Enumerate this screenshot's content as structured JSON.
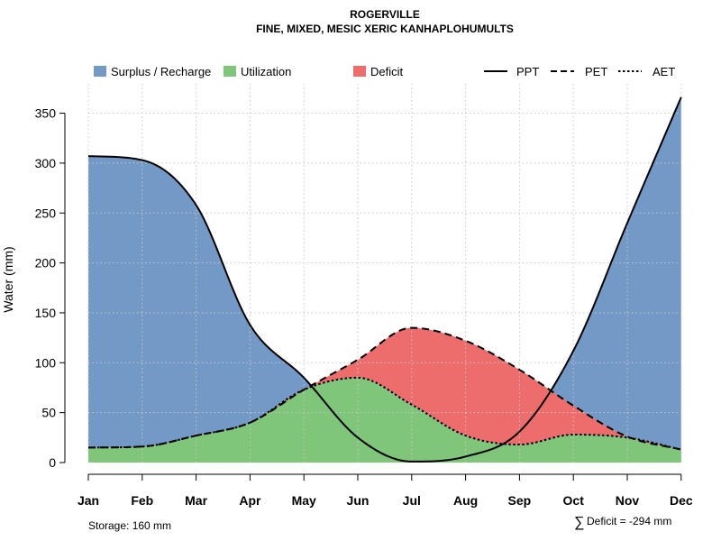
{
  "chart_data": {
    "type": "area",
    "title": "ROGERVILLE",
    "subtitle": "FINE, MIXED, MESIC XERIC KANHAPLOHUMULTS",
    "xlabel": "",
    "ylabel": "Water (mm)",
    "categories": [
      "Jan",
      "Feb",
      "Mar",
      "Apr",
      "May",
      "Jun",
      "Jul",
      "Aug",
      "Sep",
      "Oct",
      "Nov",
      "Dec"
    ],
    "ylim": [
      0,
      380
    ],
    "yticks": [
      0,
      50,
      100,
      150,
      200,
      250,
      300,
      350
    ],
    "grid": true,
    "series": [
      {
        "name": "PPT",
        "style": "solid",
        "values": [
          307,
          303,
          258,
          138,
          85,
          25,
          1,
          6,
          31,
          112,
          240,
          366
        ]
      },
      {
        "name": "PET",
        "style": "dashed",
        "values": [
          15,
          16,
          27,
          40,
          73,
          103,
          135,
          122,
          93,
          57,
          26,
          13
        ]
      },
      {
        "name": "AET",
        "style": "dotted",
        "values": [
          15,
          16,
          27,
          40,
          73,
          85,
          58,
          27,
          18,
          28,
          25,
          13
        ]
      }
    ],
    "legend": {
      "placement": "top",
      "fill_entries": [
        {
          "label": "Surplus / Recharge",
          "color": "#7399c6"
        },
        {
          "label": "Utilization",
          "color": "#7fc57a"
        },
        {
          "label": "Deficit",
          "color": "#ed6d6d"
        }
      ],
      "line_entries": [
        {
          "label": "PPT",
          "style": "solid"
        },
        {
          "label": "PET",
          "style": "dashed"
        },
        {
          "label": "AET",
          "style": "dotted"
        }
      ]
    },
    "annotations": {
      "storage": "Storage: 160 mm",
      "deficit_symbol": "∑",
      "deficit": "Deficit = -294 mm"
    }
  }
}
